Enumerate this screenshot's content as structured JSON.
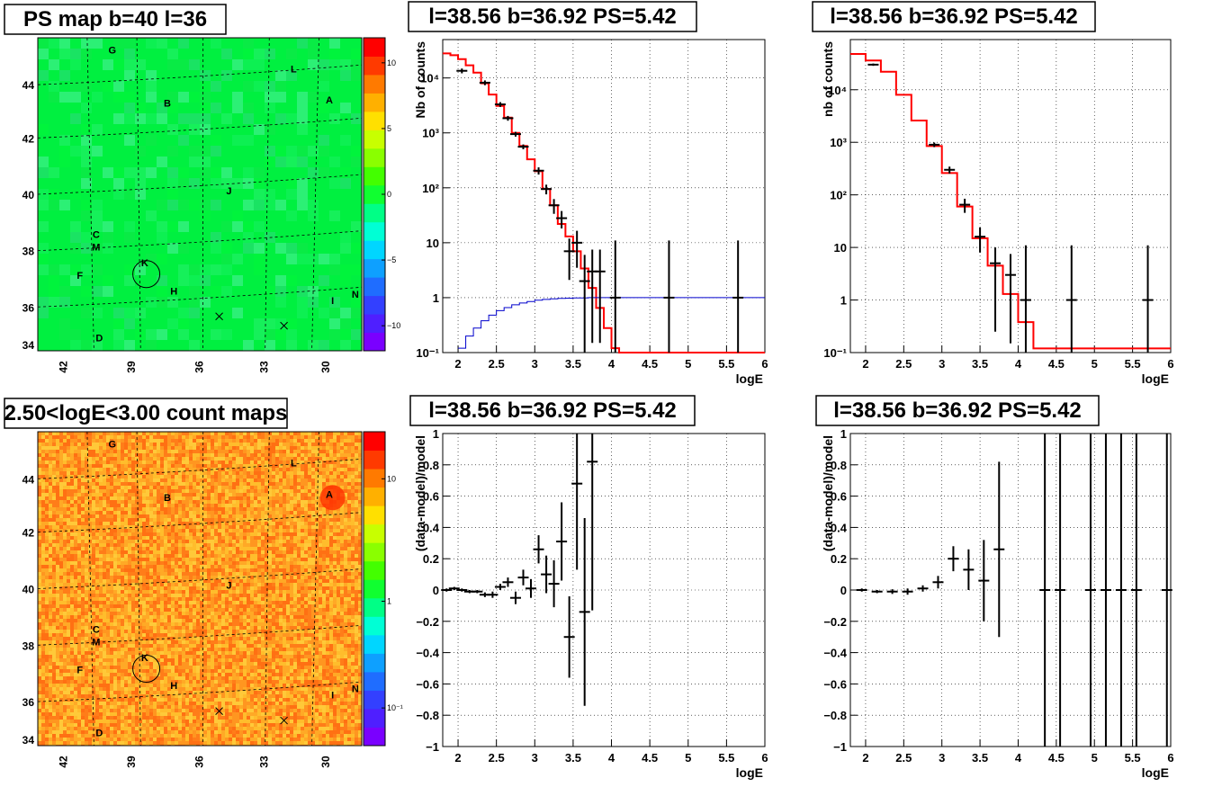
{
  "colors": {
    "palette": [
      "#7a00ff",
      "#4f1fff",
      "#3340ff",
      "#1f6dff",
      "#0ea0ff",
      "#00d6ff",
      "#00ffd5",
      "#00ff86",
      "#10ff30",
      "#43ff00",
      "#8aff00",
      "#c8ff00",
      "#ffe000",
      "#ffb000",
      "#ff7a00",
      "#ff3a00",
      "#ff0000"
    ],
    "model": "#ff0000",
    "background_model": "#0000cc",
    "data": "#000000",
    "grid": "#000000"
  },
  "maps": [
    {
      "title": "PS map b=40 l=36",
      "fill": "#00f040",
      "colorbar_ticks": [
        "10",
        "5",
        "0",
        "−5",
        "−10"
      ],
      "y_ticks": [
        "44",
        "42",
        "40",
        "38",
        "36",
        "34"
      ],
      "x_ticks": [
        "42",
        "39",
        "36",
        "33",
        "30"
      ],
      "sources": [
        "G",
        "L",
        "A",
        "B",
        "J",
        "C",
        "M",
        "K",
        "F",
        "H",
        "I",
        "N",
        "D"
      ],
      "markers": [
        "circle-icon",
        "x-mark-icon"
      ]
    },
    {
      "title": "2.50<logE<3.00 count maps",
      "fill": "#ffb020",
      "colorbar_ticks": [
        "10",
        "1",
        "10⁻¹"
      ],
      "y_ticks": [
        "44",
        "42",
        "40",
        "38",
        "36",
        "34"
      ],
      "x_ticks": [
        "42",
        "39",
        "36",
        "33",
        "30"
      ],
      "sources": [
        "G",
        "L",
        "A",
        "B",
        "J",
        "C",
        "M",
        "K",
        "F",
        "H",
        "I",
        "N",
        "D"
      ],
      "markers": [
        "circle-icon",
        "x-mark-icon"
      ]
    }
  ],
  "chart_data": [
    {
      "type": "line",
      "title": "l=38.56 b=36.92 PS=5.42",
      "xlabel": "logE",
      "ylabel": "Nb of counts",
      "xlim": [
        1.8,
        6.0
      ],
      "ylim": [
        0.1,
        50000
      ],
      "log_y": true,
      "grid": true,
      "x_ticks": [
        "2",
        "2.5",
        "3",
        "3.5",
        "4",
        "4.5",
        "5",
        "5.5",
        "6"
      ],
      "y_ticks": [
        "10⁻¹",
        "1",
        "10",
        "10²",
        "10³",
        "10⁴"
      ],
      "series": [
        {
          "kind": "step",
          "bins": [
            1.8,
            1.9,
            2.0,
            2.1,
            2.2,
            2.3,
            2.4,
            2.5,
            2.6,
            2.7,
            2.8,
            2.9,
            3.0,
            3.1,
            3.2,
            3.3,
            3.4,
            3.5,
            3.6,
            3.7,
            3.8,
            3.9,
            4.0,
            4.1,
            4.2,
            4.3,
            6.0
          ],
          "values": [
            28000,
            26000,
            22000,
            17000,
            12500,
            8000,
            5000,
            3100,
            1900,
            1000,
            580,
            330,
            200,
            95,
            48,
            22,
            13,
            7,
            3.4,
            1.5,
            0.65,
            0.28,
            0.12,
            0.09,
            0.09,
            0.09
          ]
        },
        {
          "kind": "step",
          "bins": [
            2.0,
            2.1,
            2.2,
            2.3,
            2.4,
            2.5,
            2.6,
            2.7,
            2.8,
            2.9,
            3.0,
            3.1,
            3.2,
            3.3,
            3.4,
            3.5,
            3.6,
            3.7,
            3.8,
            3.9,
            4.0,
            4.2,
            4.4,
            4.6,
            6.0
          ],
          "values": [
            0.12,
            0.2,
            0.28,
            0.38,
            0.48,
            0.58,
            0.66,
            0.74,
            0.8,
            0.85,
            0.9,
            0.93,
            0.95,
            0.97,
            0.98,
            0.99,
            0.99,
            1.0,
            1.0,
            1.0,
            1.0,
            1.0,
            1.0,
            1.0
          ]
        },
        {
          "kind": "points",
          "points": [
            [
              2.05,
              13500,
              0.1
            ],
            [
              2.35,
              8200,
              0.1
            ],
            [
              2.55,
              3300,
              0.1
            ],
            [
              2.65,
              1850,
              0.1
            ],
            [
              2.75,
              950,
              0.1
            ],
            [
              2.85,
              560,
              0.1
            ],
            [
              3.05,
              205,
              0.15
            ],
            [
              3.15,
              95,
              0.2
            ],
            [
              3.25,
              48,
              0.3
            ],
            [
              3.35,
              28,
              0.35
            ],
            [
              3.45,
              7,
              0.7
            ],
            [
              3.55,
              10,
              0.65
            ],
            [
              3.65,
              2,
              2.0
            ],
            [
              3.75,
              3,
              1.5
            ],
            [
              3.85,
              3,
              1.5
            ],
            [
              4.05,
              1,
              10
            ],
            [
              4.75,
              1,
              10
            ],
            [
              5.65,
              1,
              10
            ]
          ]
        }
      ]
    },
    {
      "type": "line",
      "title": "l=38.56 b=36.92 PS=5.42",
      "xlabel": "logE",
      "ylabel": "nb of counts",
      "xlim": [
        1.8,
        6.0
      ],
      "ylim": [
        0.1,
        90000
      ],
      "log_y": true,
      "grid": true,
      "x_ticks": [
        "2",
        "2.5",
        "3",
        "3.5",
        "4",
        "4.5",
        "5",
        "5.5",
        "6"
      ],
      "y_ticks": [
        "10⁻¹",
        "1",
        "10",
        "10²",
        "10³",
        "10⁴"
      ],
      "series": [
        {
          "kind": "step",
          "bins": [
            1.8,
            2.0,
            2.2,
            2.4,
            2.6,
            2.8,
            3.0,
            3.2,
            3.4,
            3.6,
            3.8,
            4.0,
            4.2,
            6.0
          ],
          "values": [
            48000,
            36000,
            22000,
            8000,
            2600,
            850,
            260,
            60,
            15,
            4.5,
            1.3,
            0.38,
            0.12
          ]
        },
        {
          "kind": "points",
          "points": [
            [
              2.1,
              30000,
              0.05
            ],
            [
              2.9,
              900,
              0.1
            ],
            [
              3.1,
              300,
              0.15
            ],
            [
              3.3,
              65,
              0.3
            ],
            [
              3.5,
              16,
              0.5
            ],
            [
              3.7,
              5,
              1.0
            ],
            [
              3.9,
              3,
              1.5
            ],
            [
              4.1,
              1,
              10
            ],
            [
              4.7,
              1,
              10
            ],
            [
              5.7,
              1,
              10
            ]
          ]
        }
      ]
    },
    {
      "type": "scatter",
      "title": "l=38.56 b=36.92 PS=5.42",
      "xlabel": "logE",
      "ylabel": "(data-model)/model",
      "xlim": [
        1.8,
        6.0
      ],
      "ylim": [
        -1,
        1
      ],
      "grid": true,
      "x_ticks": [
        "2",
        "2.5",
        "3",
        "3.5",
        "4",
        "4.5",
        "5",
        "5.5",
        "6"
      ],
      "y_ticks": [
        "1",
        "0.8",
        "0.6",
        "0.4",
        "0.2",
        "0",
        "−0.2",
        "−0.4",
        "−0.6",
        "−0.8",
        "−1"
      ],
      "series": [
        {
          "kind": "points",
          "points": [
            [
              1.85,
              0,
              0.01
            ],
            [
              1.95,
              0.01,
              0.01
            ],
            [
              2.05,
              0.0,
              0.01
            ],
            [
              2.15,
              -0.01,
              0.01
            ],
            [
              2.25,
              -0.01,
              0.01
            ],
            [
              2.35,
              -0.03,
              0.015
            ],
            [
              2.45,
              -0.03,
              0.02
            ],
            [
              2.55,
              0.02,
              0.02
            ],
            [
              2.65,
              0.05,
              0.03
            ],
            [
              2.75,
              -0.05,
              0.04
            ],
            [
              2.85,
              0.08,
              0.05
            ],
            [
              2.95,
              0.01,
              0.06
            ],
            [
              3.05,
              0.26,
              0.09
            ],
            [
              3.15,
              0.1,
              0.12
            ],
            [
              3.25,
              0.04,
              0.15
            ],
            [
              3.35,
              0.31,
              0.25
            ],
            [
              3.45,
              -0.3,
              0.26
            ],
            [
              3.55,
              0.68,
              0.55
            ],
            [
              3.65,
              -0.14,
              0.6
            ],
            [
              3.75,
              0.82,
              0.95
            ]
          ]
        }
      ]
    },
    {
      "type": "scatter",
      "title": "l=38.56 b=36.92 PS=5.42",
      "xlabel": "logE",
      "ylabel": "(data-model)/model",
      "xlim": [
        1.8,
        6.0
      ],
      "ylim": [
        -1,
        1
      ],
      "grid": true,
      "x_ticks": [
        "2",
        "2.5",
        "3",
        "3.5",
        "4",
        "4.5",
        "5",
        "5.5",
        "6"
      ],
      "y_ticks": [
        "1",
        "0.8",
        "0.6",
        "0.4",
        "0.2",
        "0",
        "−0.2",
        "−0.4",
        "−0.6",
        "−0.8",
        "−1"
      ],
      "series": [
        {
          "kind": "points",
          "points": [
            [
              1.95,
              0,
              0.01
            ],
            [
              2.15,
              -0.01,
              0.01
            ],
            [
              2.35,
              -0.01,
              0.015
            ],
            [
              2.55,
              -0.01,
              0.02
            ],
            [
              2.75,
              0.01,
              0.02
            ],
            [
              2.95,
              0.05,
              0.04
            ],
            [
              3.15,
              0.2,
              0.08
            ],
            [
              3.35,
              0.13,
              0.13
            ],
            [
              3.55,
              0.06,
              0.26
            ],
            [
              3.75,
              0.26,
              0.56
            ],
            [
              4.35,
              0,
              5
            ],
            [
              4.55,
              0,
              5
            ],
            [
              4.95,
              0,
              5
            ],
            [
              5.15,
              0,
              5
            ],
            [
              5.35,
              0,
              5
            ],
            [
              5.55,
              0,
              5
            ],
            [
              5.95,
              0,
              5
            ]
          ]
        }
      ]
    }
  ]
}
